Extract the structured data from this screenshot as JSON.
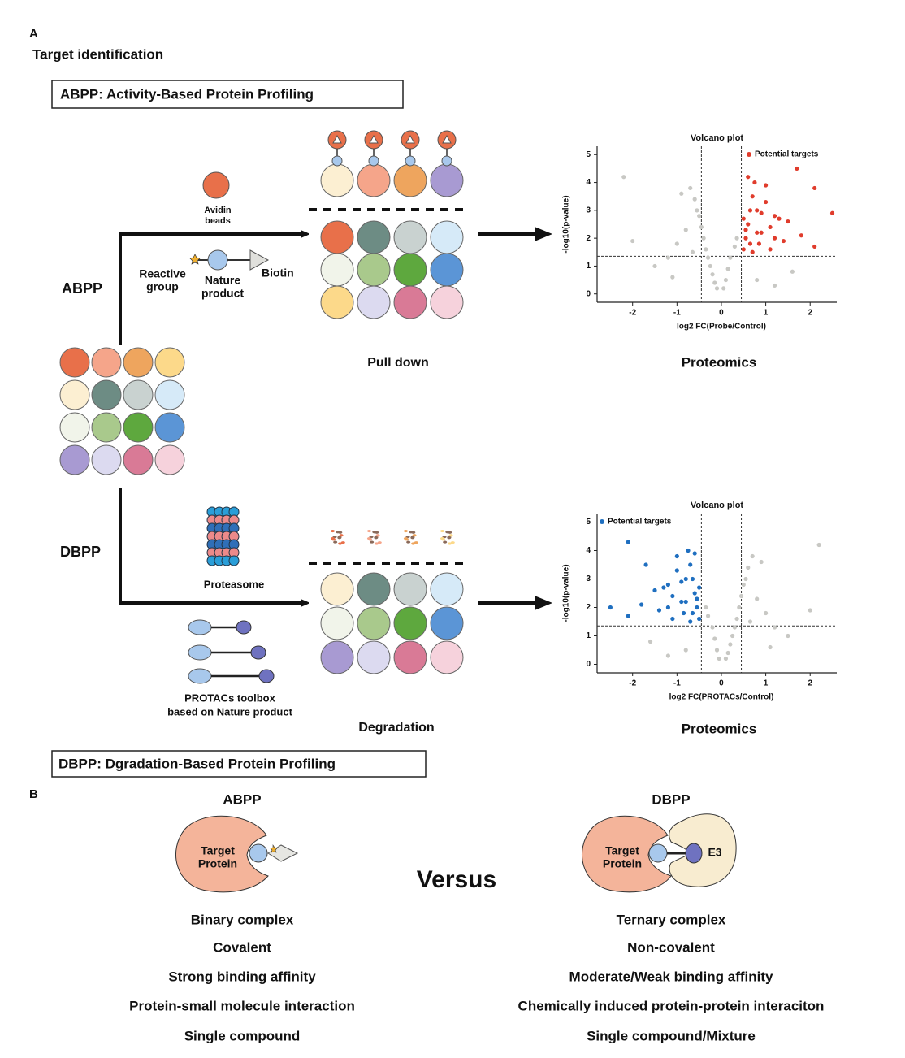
{
  "panel_a": {
    "label": "A",
    "title": "Target identification",
    "abpp_box": "ABPP: Activity-Based Protein Profiling",
    "abpp_label": "ABPP",
    "avidin": [
      "Avidin",
      "beads"
    ],
    "reactive_group": [
      "Reactive",
      "group"
    ],
    "nature_product": [
      "Nature",
      "product"
    ],
    "biotin": "Biotin",
    "pull_down": "Pull down",
    "proteomics_top": "Proteomics",
    "dbpp_label": "DBPP",
    "proteasome": "Proteasome",
    "protacs": [
      "PROTACs toolbox",
      "based on Nature product"
    ],
    "degradation": "Degradation",
    "proteomics_bottom": "Proteomics",
    "dbpp_box": "DBPP: Dgradation-Based Protein Profiling"
  },
  "chart_data": [
    {
      "type": "scatter",
      "title": "Volcano plot",
      "x_label": "log2 FC(Probe/Control)",
      "y_label": "-log10(p-value)",
      "xlim": [
        -2.8,
        2.6
      ],
      "ylim": [
        -0.3,
        5.3
      ],
      "xticks": [
        -2,
        -1,
        0,
        1,
        2
      ],
      "yticks": [
        0,
        1,
        2,
        3,
        4,
        5
      ],
      "thresholds": {
        "x": [
          -0.45,
          0.45
        ],
        "y": 1.35
      },
      "legend": "upper right",
      "series": [
        {
          "color": "#c8c8c4",
          "x": [
            -0.6,
            -0.5,
            -0.45,
            -0.4,
            -0.35,
            -0.3,
            -0.25,
            -0.2,
            -0.15,
            -0.1,
            0.05,
            0.1,
            0.15,
            0.2,
            0.3,
            0.35,
            -0.7,
            -0.55,
            -0.8,
            -1.0,
            -1.2,
            -1.5,
            -2.0,
            -2.2,
            -1.1,
            -0.9,
            0.8,
            1.2,
            1.6,
            -0.65
          ],
          "values": [
            3.4,
            2.8,
            2.4,
            2.0,
            1.6,
            1.3,
            1.0,
            0.7,
            0.4,
            0.2,
            0.2,
            0.5,
            0.9,
            1.3,
            1.7,
            2.0,
            3.8,
            3.0,
            2.3,
            1.8,
            1.3,
            1.0,
            1.9,
            4.2,
            0.6,
            3.6,
            0.5,
            0.3,
            0.8,
            1.5
          ]
        },
        {
          "name": "Potential targets",
          "color": "#e03c2c",
          "x": [
            0.5,
            0.55,
            0.6,
            0.65,
            0.7,
            0.75,
            0.8,
            0.85,
            0.9,
            1.0,
            1.1,
            1.2,
            1.3,
            1.4,
            1.5,
            1.7,
            1.8,
            2.1,
            2.1,
            2.5,
            0.6,
            0.7,
            0.9,
            1.0,
            1.2,
            0.55,
            0.8,
            1.1,
            0.65,
            0.5
          ],
          "values": [
            1.6,
            2.0,
            2.5,
            3.0,
            3.5,
            4.0,
            2.2,
            1.8,
            2.9,
            3.3,
            2.4,
            2.0,
            2.7,
            1.9,
            2.6,
            4.5,
            2.1,
            3.8,
            1.7,
            2.9,
            4.2,
            1.5,
            2.2,
            3.9,
            2.8,
            2.3,
            3.0,
            1.6,
            1.8,
            2.7
          ]
        }
      ]
    },
    {
      "type": "scatter",
      "title": "Volcano plot",
      "x_label": "log2 FC(PROTACs/Control)",
      "y_label": "-log10(p-value)",
      "xlim": [
        -2.8,
        2.6
      ],
      "ylim": [
        -0.3,
        5.3
      ],
      "xticks": [
        -2,
        -1,
        0,
        1,
        2
      ],
      "yticks": [
        0,
        1,
        2,
        3,
        4,
        5
      ],
      "thresholds": {
        "x": [
          -0.45,
          0.45
        ],
        "y": 1.35
      },
      "legend": "upper left",
      "series": [
        {
          "color": "#c8c8c4",
          "x": [
            0.6,
            0.5,
            0.45,
            0.4,
            0.35,
            0.3,
            0.25,
            0.2,
            0.15,
            0.1,
            -0.05,
            -0.1,
            -0.15,
            -0.2,
            -0.3,
            -0.35,
            0.7,
            0.55,
            0.8,
            1.0,
            1.2,
            1.5,
            2.0,
            2.2,
            1.1,
            0.9,
            -0.8,
            -1.2,
            -1.6,
            0.65
          ],
          "values": [
            3.4,
            2.8,
            2.4,
            2.0,
            1.6,
            1.3,
            1.0,
            0.7,
            0.4,
            0.2,
            0.2,
            0.5,
            0.9,
            1.3,
            1.7,
            2.0,
            3.8,
            3.0,
            2.3,
            1.8,
            1.3,
            1.0,
            1.9,
            4.2,
            0.6,
            3.6,
            0.5,
            0.3,
            0.8,
            1.5
          ]
        },
        {
          "name": "Potential targets",
          "color": "#1f6fc0",
          "x": [
            -0.5,
            -0.55,
            -0.6,
            -0.65,
            -0.7,
            -0.75,
            -0.8,
            -0.85,
            -0.9,
            -1.0,
            -1.1,
            -1.2,
            -1.3,
            -1.4,
            -1.5,
            -1.7,
            -1.8,
            -2.1,
            -2.1,
            -2.5,
            -0.6,
            -0.7,
            -0.9,
            -1.0,
            -1.2,
            -0.55,
            -0.8,
            -1.1,
            -0.65,
            -0.5
          ],
          "values": [
            1.6,
            2.0,
            2.5,
            3.0,
            3.5,
            4.0,
            2.2,
            1.8,
            2.9,
            3.3,
            2.4,
            2.0,
            2.7,
            1.9,
            2.6,
            3.5,
            2.1,
            4.3,
            1.7,
            2.0,
            3.9,
            1.5,
            2.2,
            3.8,
            2.8,
            2.3,
            3.0,
            1.6,
            1.8,
            2.7
          ]
        }
      ]
    }
  ],
  "panel_b": {
    "label": "B",
    "abpp": "ABPP",
    "dbpp": "DBPP",
    "target_left": [
      "Target",
      "Protein"
    ],
    "target_right": [
      "Target",
      "Protein"
    ],
    "e3": "E3",
    "versus": "Versus",
    "abpp_list": [
      "Binary complex",
      "Covalent",
      "Strong binding affinity",
      "Protein-small molecule interaction",
      "Single compound"
    ],
    "dbpp_list": [
      "Ternary complex",
      "Non-covalent",
      "Moderate/Weak binding affinity",
      "Chemically induced protein-protein interaciton",
      "Single compound/Mixture"
    ]
  }
}
